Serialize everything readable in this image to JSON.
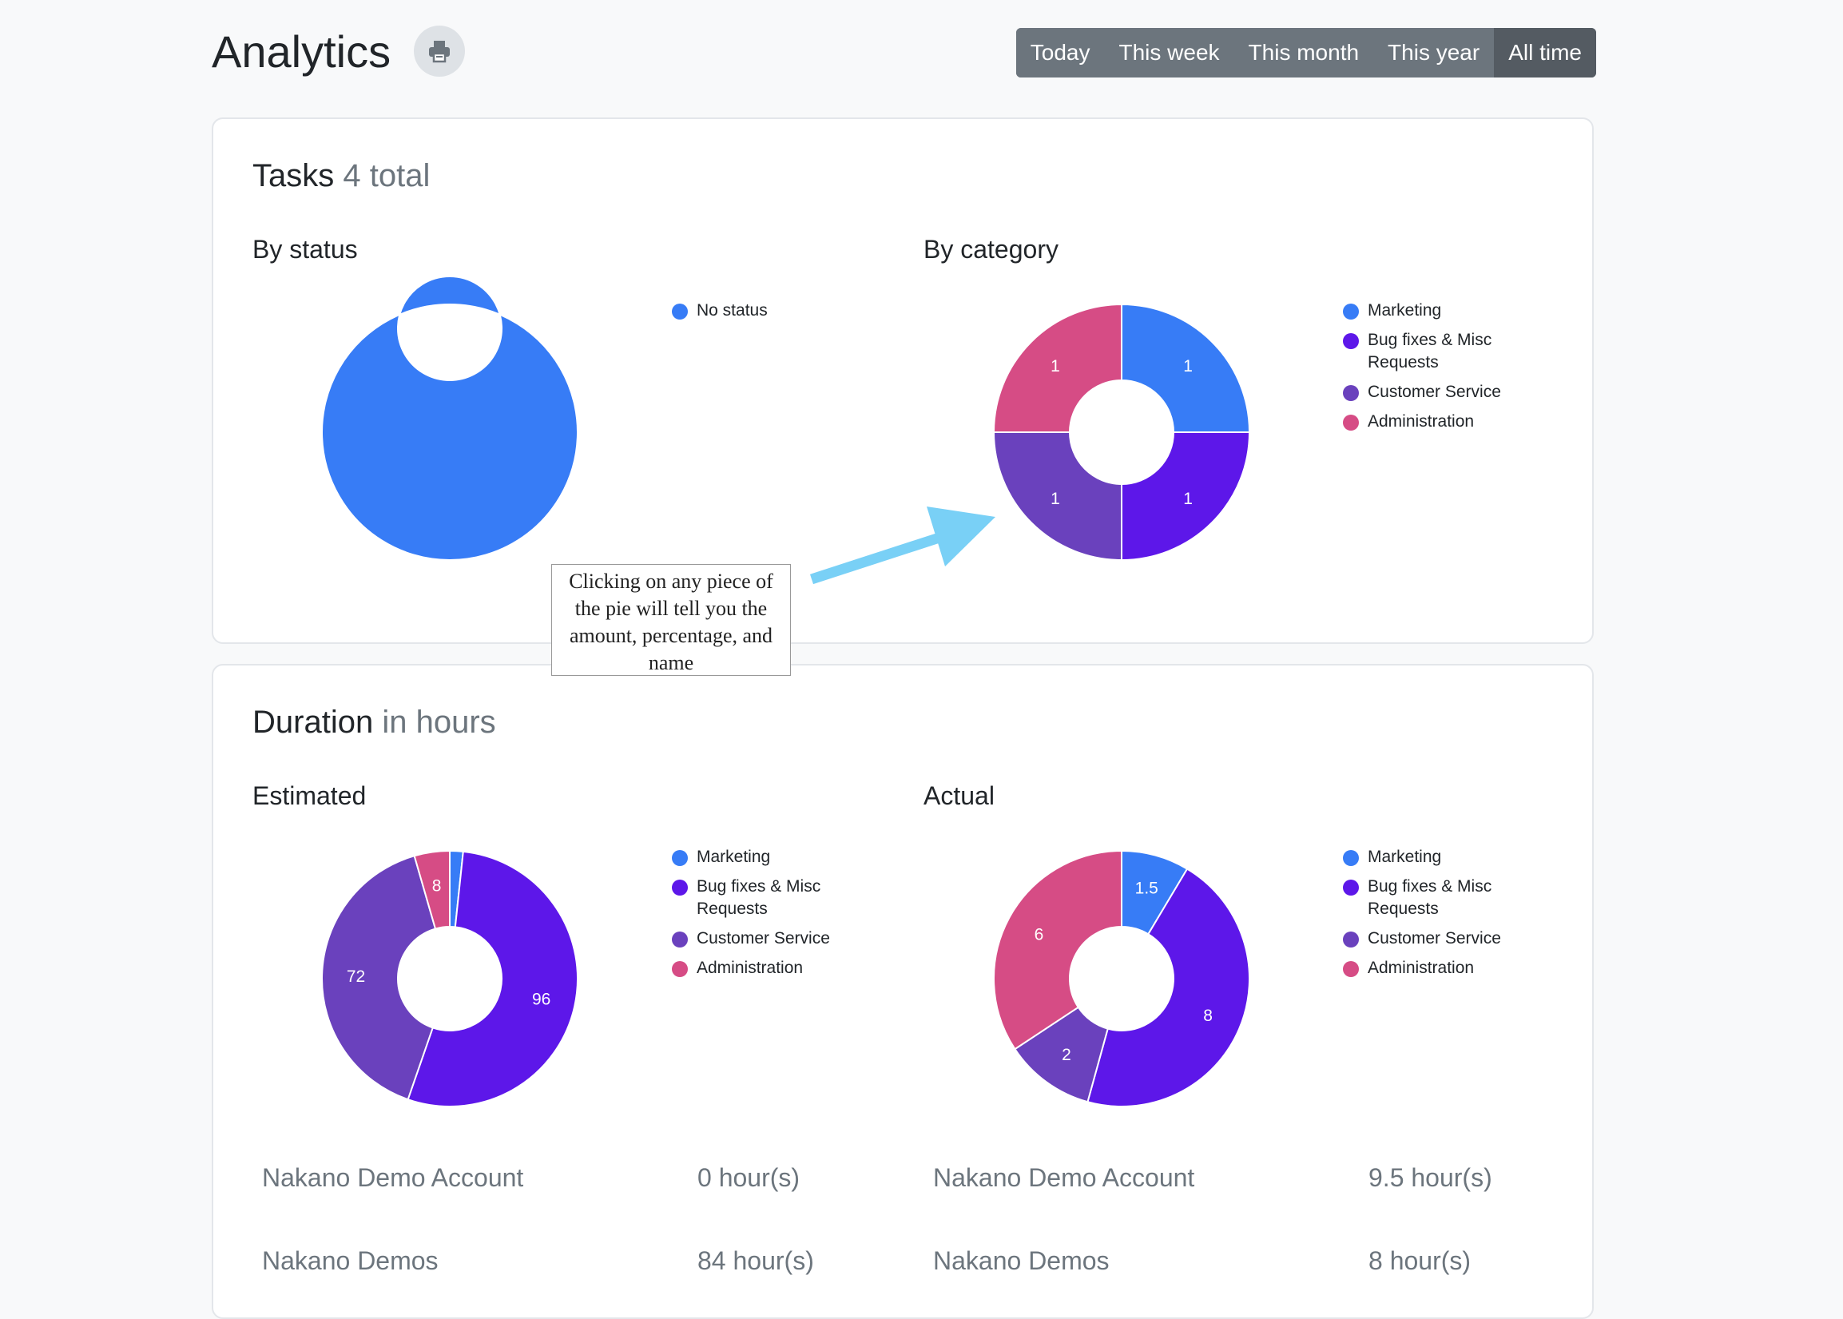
{
  "header": {
    "title": "Analytics",
    "print_icon": "printer-icon",
    "periods": [
      {
        "label": "Today",
        "active": false
      },
      {
        "label": "This week",
        "active": false
      },
      {
        "label": "This month",
        "active": false
      },
      {
        "label": "This year",
        "active": false
      },
      {
        "label": "All time",
        "active": true
      }
    ]
  },
  "colors": {
    "Marketing": "#377cf6",
    "Bug fixes & Misc Requests": "#5d17e9",
    "Customer Service": "#6a41bd",
    "Administration": "#d64c85",
    "No status": "#377cf6"
  },
  "tasks": {
    "title": "Tasks",
    "total": "4 total",
    "by_status_title": "By status",
    "by_category_title": "By category"
  },
  "duration": {
    "title": "Duration",
    "subtitle": "in hours",
    "estimated_title": "Estimated",
    "actual_title": "Actual",
    "estimated_rows": [
      {
        "name": "Nakano Demo Account",
        "value": "0 hour(s)"
      },
      {
        "name": "Nakano Demos",
        "value": "84 hour(s)"
      }
    ],
    "actual_rows": [
      {
        "name": "Nakano Demo Account",
        "value": "9.5 hour(s)"
      },
      {
        "name": "Nakano Demos",
        "value": "8 hour(s)"
      }
    ]
  },
  "callout": {
    "text": "Clicking on any piece of the pie will tell you the amount, percentage, and name"
  },
  "chart_data": [
    {
      "type": "pie",
      "donut": true,
      "title": "By status",
      "categories": [
        "No status"
      ],
      "values": [
        4
      ],
      "show_labels": false
    },
    {
      "type": "pie",
      "donut": true,
      "title": "By category",
      "categories": [
        "Marketing",
        "Bug fixes & Misc Requests",
        "Customer Service",
        "Administration"
      ],
      "values": [
        1,
        1,
        1,
        1
      ],
      "labels": [
        "1",
        "1",
        "1",
        "1"
      ],
      "show_labels": true
    },
    {
      "type": "pie",
      "donut": true,
      "title": "Estimated",
      "categories": [
        "Marketing",
        "Bug fixes & Misc Requests",
        "Customer Service",
        "Administration"
      ],
      "values": [
        3,
        96,
        72,
        8
      ],
      "labels": [
        "",
        "96",
        "72",
        "8"
      ],
      "show_labels": true
    },
    {
      "type": "pie",
      "donut": true,
      "title": "Actual",
      "categories": [
        "Marketing",
        "Bug fixes & Misc Requests",
        "Customer Service",
        "Administration"
      ],
      "values": [
        1.5,
        8,
        2,
        6
      ],
      "labels": [
        "1.5",
        "8",
        "2",
        "6"
      ],
      "show_labels": true
    }
  ]
}
